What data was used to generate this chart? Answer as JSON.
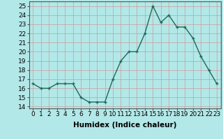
{
  "x": [
    0,
    1,
    2,
    3,
    4,
    5,
    6,
    7,
    8,
    9,
    10,
    11,
    12,
    13,
    14,
    15,
    16,
    17,
    18,
    19,
    20,
    21,
    22,
    23
  ],
  "y": [
    16.5,
    16.0,
    16.0,
    16.5,
    16.5,
    16.5,
    15.0,
    14.5,
    14.5,
    14.5,
    17.0,
    19.0,
    20.0,
    20.0,
    22.0,
    25.0,
    23.2,
    24.0,
    22.7,
    22.7,
    21.5,
    19.5,
    18.0,
    16.5
  ],
  "xlabel": "Humidex (Indice chaleur)",
  "xlim": [
    -0.5,
    23.5
  ],
  "ylim": [
    13.8,
    25.5
  ],
  "yticks": [
    14,
    15,
    16,
    17,
    18,
    19,
    20,
    21,
    22,
    23,
    24,
    25
  ],
  "xticks": [
    0,
    1,
    2,
    3,
    4,
    5,
    6,
    7,
    8,
    9,
    10,
    11,
    12,
    13,
    14,
    15,
    16,
    17,
    18,
    19,
    20,
    21,
    22,
    23
  ],
  "line_color": "#1a6b5a",
  "marker": "+",
  "bg_color": "#b3e8e8",
  "grid_color": "#cc9999",
  "tick_fontsize": 6.5,
  "xlabel_fontsize": 7.5
}
